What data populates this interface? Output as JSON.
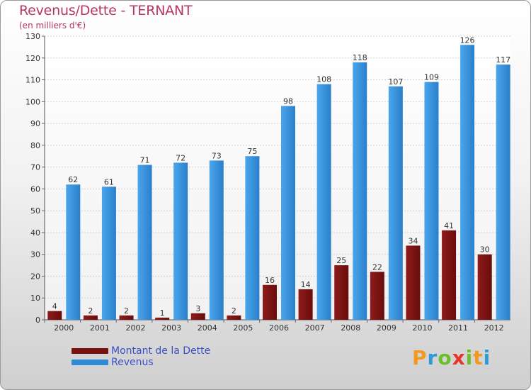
{
  "title": "Revenus/Dette - TERNANT",
  "subtitle": "(en milliers d'€)",
  "colors": {
    "dette": "#7a1010",
    "revenus": "#2f8bd8",
    "title": "#b5375f",
    "legend_text": "#3a4fc9"
  },
  "brand": {
    "letters": [
      "P",
      "r",
      "o",
      "x",
      "i",
      "t",
      "i"
    ],
    "colors": [
      "#f39a1e",
      "#2f9ad8",
      "#6bbf2a",
      "#e8352c",
      "#6bbf2a",
      "#f39a1e",
      "#2f9ad8"
    ]
  },
  "chart_data": {
    "type": "bar",
    "title": "Revenus/Dette - TERNANT",
    "ylabel": "(en milliers d'€)",
    "xlabel": "",
    "categories": [
      "2000",
      "2001",
      "2002",
      "2003",
      "2004",
      "2005",
      "2006",
      "2007",
      "2008",
      "2009",
      "2010",
      "2011",
      "2012"
    ],
    "series": [
      {
        "name": "Montant de la Dette",
        "values": [
          4,
          2,
          2,
          1,
          3,
          2,
          16,
          14,
          25,
          22,
          34,
          41,
          30
        ]
      },
      {
        "name": "Revenus",
        "values": [
          62,
          61,
          71,
          72,
          73,
          75,
          98,
          108,
          118,
          107,
          109,
          126,
          117
        ]
      }
    ],
    "ylim": [
      0,
      130
    ],
    "yticks": [
      0,
      10,
      20,
      30,
      40,
      50,
      60,
      70,
      80,
      90,
      100,
      110,
      120,
      130
    ],
    "grid": true,
    "legend": "bottom-left"
  }
}
